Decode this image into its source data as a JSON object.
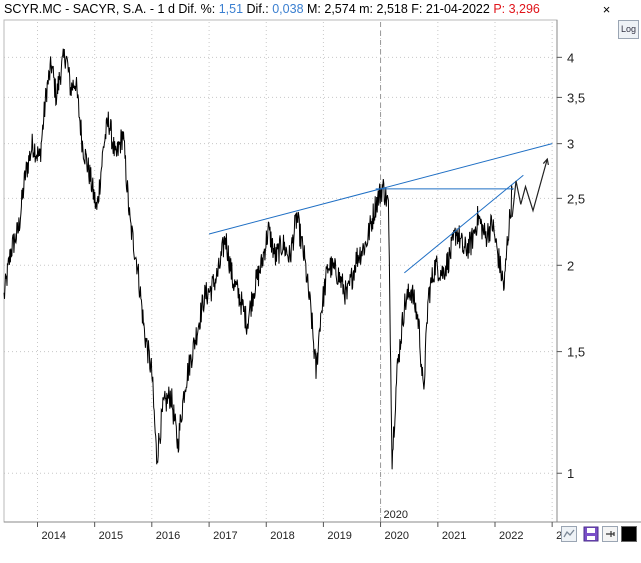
{
  "header": {
    "symbol": "SCYR.MC - SACYR, S.A. -",
    "period": "1 d",
    "dif_pct_label": "Dif. %:",
    "dif_pct_value": "1,51",
    "dif_label": "Dif.:",
    "dif_value": "0,038",
    "max_label": "M:",
    "max_value": "2,574",
    "min_label": "m:",
    "min_value": "2,518",
    "date_label": "F:",
    "date_value": "21-04-2022",
    "price_label": "P",
    "price_value": ": 3,296"
  },
  "buttons": {
    "close": "×",
    "log": "Log"
  },
  "colors": {
    "price_line": "#000000",
    "trendline": "#1f6fc4",
    "grid": "#c8c8c8",
    "accent_blue": "#3a7fd0",
    "accent_red": "#e0151b"
  },
  "chart_data": {
    "type": "line",
    "y_scale": "log",
    "ylim": [
      0.85,
      4.5
    ],
    "xlim": [
      "2013-06-01",
      "2023-02-01"
    ],
    "y_ticks": [
      {
        "value": 4,
        "label": "4"
      },
      {
        "value": 3.5,
        "label": "3,5"
      },
      {
        "value": 3,
        "label": "3"
      },
      {
        "value": 2.5,
        "label": "2,5"
      },
      {
        "value": 2,
        "label": "2"
      },
      {
        "value": 1.5,
        "label": "1,5"
      },
      {
        "value": 1,
        "label": "1"
      }
    ],
    "x_ticks": [
      {
        "date": "2014-01-01",
        "label": "2014"
      },
      {
        "date": "2015-01-01",
        "label": "2015"
      },
      {
        "date": "2016-01-01",
        "label": "2016"
      },
      {
        "date": "2017-01-01",
        "label": "2017"
      },
      {
        "date": "2018-01-01",
        "label": "2018"
      },
      {
        "date": "2019-01-01",
        "label": "2019"
      },
      {
        "date": "2020-01-01",
        "label": "2020"
      },
      {
        "date": "2021-01-01",
        "label": "2021"
      },
      {
        "date": "2022-01-01",
        "label": "2022"
      },
      {
        "date": "2023-01-01",
        "label": "2"
      }
    ],
    "cursor_label": "2020",
    "series": [
      {
        "values": [
          [
            "2013-06-01",
            1.8
          ],
          [
            "2013-07-15",
            2.1
          ],
          [
            "2013-09-01",
            2.25
          ],
          [
            "2013-10-15",
            2.7
          ],
          [
            "2013-12-01",
            3.0
          ],
          [
            "2014-01-15",
            2.85
          ],
          [
            "2014-03-01",
            3.6
          ],
          [
            "2014-04-01",
            3.9
          ],
          [
            "2014-05-01",
            3.5
          ],
          [
            "2014-06-01",
            3.85
          ],
          [
            "2014-07-01",
            4.05
          ],
          [
            "2014-08-01",
            3.6
          ],
          [
            "2014-09-01",
            3.7
          ],
          [
            "2014-10-15",
            3.0
          ],
          [
            "2014-12-01",
            2.7
          ],
          [
            "2015-01-15",
            2.4
          ],
          [
            "2015-03-01",
            3.0
          ],
          [
            "2015-04-01",
            3.25
          ],
          [
            "2015-05-15",
            2.85
          ],
          [
            "2015-07-01",
            3.1
          ],
          [
            "2015-08-15",
            2.3
          ],
          [
            "2015-10-01",
            2.0
          ],
          [
            "2015-11-15",
            1.6
          ],
          [
            "2016-01-01",
            1.4
          ],
          [
            "2016-02-01",
            1.05
          ],
          [
            "2016-03-15",
            1.25
          ],
          [
            "2016-05-01",
            1.3
          ],
          [
            "2016-06-15",
            1.1
          ],
          [
            "2016-08-01",
            1.35
          ],
          [
            "2016-10-01",
            1.55
          ],
          [
            "2016-12-01",
            1.8
          ],
          [
            "2017-01-15",
            1.85
          ],
          [
            "2017-03-01",
            1.95
          ],
          [
            "2017-04-15",
            2.2
          ],
          [
            "2017-06-01",
            1.9
          ],
          [
            "2017-07-15",
            1.8
          ],
          [
            "2017-09-01",
            1.65
          ],
          [
            "2017-10-15",
            1.85
          ],
          [
            "2017-12-01",
            2.0
          ],
          [
            "2018-01-15",
            2.25
          ],
          [
            "2018-03-01",
            2.05
          ],
          [
            "2018-04-15",
            2.15
          ],
          [
            "2018-06-01",
            2.05
          ],
          [
            "2018-07-15",
            2.35
          ],
          [
            "2018-09-01",
            2.05
          ],
          [
            "2018-10-15",
            1.7
          ],
          [
            "2018-11-15",
            1.4
          ],
          [
            "2018-12-15",
            1.7
          ],
          [
            "2019-02-01",
            2.0
          ],
          [
            "2019-04-01",
            1.95
          ],
          [
            "2019-06-01",
            1.8
          ],
          [
            "2019-08-01",
            2.05
          ],
          [
            "2019-10-01",
            2.15
          ],
          [
            "2019-12-01",
            2.45
          ],
          [
            "2020-01-15",
            2.6
          ],
          [
            "2020-02-20",
            2.45
          ],
          [
            "2020-03-15",
            1.05
          ],
          [
            "2020-04-15",
            1.4
          ],
          [
            "2020-06-01",
            1.75
          ],
          [
            "2020-07-15",
            1.85
          ],
          [
            "2020-09-01",
            1.65
          ],
          [
            "2020-10-01",
            1.3
          ],
          [
            "2020-11-01",
            1.8
          ],
          [
            "2020-12-15",
            2.0
          ],
          [
            "2021-02-01",
            1.95
          ],
          [
            "2021-03-15",
            2.05
          ],
          [
            "2021-05-01",
            2.25
          ],
          [
            "2021-06-15",
            2.1
          ],
          [
            "2021-08-01",
            2.15
          ],
          [
            "2021-09-15",
            2.35
          ],
          [
            "2021-11-01",
            2.2
          ],
          [
            "2021-12-15",
            2.3
          ],
          [
            "2022-02-01",
            2.0
          ],
          [
            "2022-03-01",
            1.85
          ],
          [
            "2022-03-20",
            2.15
          ],
          [
            "2022-04-10",
            2.4
          ],
          [
            "2022-04-21",
            2.57
          ]
        ]
      }
    ],
    "annotations": [
      {
        "kind": "trendline",
        "from": [
          "2017-01-01",
          2.22
        ],
        "to": [
          "2023-01-01",
          3.0
        ]
      },
      {
        "kind": "trendline",
        "from": [
          "2020-06-01",
          1.95
        ],
        "to": [
          "2022-07-01",
          2.7
        ]
      },
      {
        "kind": "horizontal",
        "from": [
          "2019-12-01",
          2.58
        ],
        "to": [
          "2022-05-01",
          2.58
        ]
      },
      {
        "kind": "projection",
        "points": [
          [
            "2022-04-21",
            2.35
          ],
          [
            "2022-05-15",
            2.65
          ],
          [
            "2022-06-15",
            2.45
          ],
          [
            "2022-07-15",
            2.6
          ],
          [
            "2022-09-01",
            2.4
          ],
          [
            "2022-12-01",
            2.85
          ]
        ]
      }
    ]
  }
}
